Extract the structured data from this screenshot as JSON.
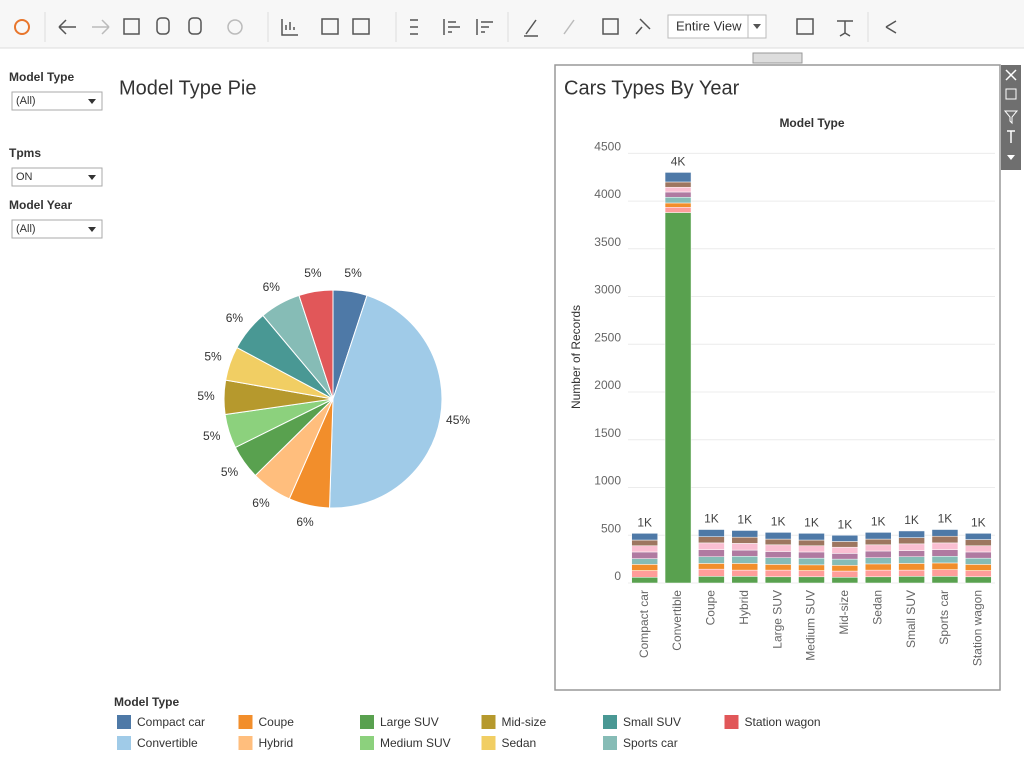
{
  "toolbar": {
    "view": "Entire View"
  },
  "filters": [
    {
      "label": "Model Type",
      "value": "(All)"
    },
    {
      "label": "Tpms",
      "value": "ON"
    },
    {
      "label": "Model Year",
      "value": "(All)"
    }
  ],
  "chart_data": [
    {
      "type": "pie",
      "title": "Model Type Pie",
      "legend_title": "Model Type",
      "categories": [
        "Compact car",
        "Convertible",
        "Coupe",
        "Hybrid",
        "Large SUV",
        "Medium SUV",
        "Mid-size",
        "Sedan",
        "Small SUV",
        "Sports car",
        "Station wagon"
      ],
      "values": [
        5,
        45,
        6,
        6,
        5,
        5,
        5,
        5,
        6,
        6,
        5
      ],
      "value_labels": [
        "5%",
        "45%",
        "6%",
        "6%",
        "5%",
        "5%",
        "5%",
        "5%",
        "6%",
        "6%",
        "5%"
      ],
      "colors": [
        "#4e79a7",
        "#a0cbe8",
        "#f28e2b",
        "#ffbe7d",
        "#59a14f",
        "#8cd17d",
        "#b6992d",
        "#f1ce63",
        "#499894",
        "#86bcb6",
        "#e15759"
      ]
    },
    {
      "type": "bar",
      "stacked": true,
      "title": "Cars Types By Year",
      "header": "Model Type",
      "y_label": "Number of Records",
      "categories": [
        "Compact car",
        "Convertible",
        "Coupe",
        "Hybrid",
        "Large SUV",
        "Medium SUV",
        "Mid-size",
        "Sedan",
        "Small SUV",
        "Sports car",
        "Station wagon"
      ],
      "series": [
        {
          "color": "#59a14f",
          "values": [
            60,
            3880,
            70,
            70,
            65,
            65,
            60,
            65,
            70,
            70,
            65
          ]
        },
        {
          "color": "#ff9d9a",
          "values": [
            70,
            55,
            75,
            65,
            70,
            65,
            65,
            70,
            65,
            70,
            65
          ]
        },
        {
          "color": "#f28e2b",
          "values": [
            65,
            45,
            60,
            70,
            60,
            60,
            60,
            65,
            70,
            70,
            65
          ]
        },
        {
          "color": "#86bcb6",
          "values": [
            60,
            60,
            70,
            75,
            70,
            70,
            65,
            65,
            70,
            70,
            65
          ]
        },
        {
          "color": "#b07aa1",
          "values": [
            70,
            55,
            75,
            65,
            65,
            65,
            60,
            70,
            65,
            70,
            65
          ]
        },
        {
          "color": "#fabfd2",
          "values": [
            65,
            50,
            70,
            70,
            70,
            65,
            65,
            65,
            70,
            70,
            65
          ]
        },
        {
          "color": "#9d7660",
          "values": [
            60,
            55,
            65,
            65,
            60,
            60,
            60,
            60,
            65,
            70,
            65
          ]
        },
        {
          "color": "#4e79a7",
          "values": [
            70,
            100,
            75,
            70,
            70,
            70,
            65,
            70,
            70,
            70,
            65
          ]
        }
      ],
      "totals": [
        520,
        4300,
        560,
        550,
        530,
        520,
        500,
        530,
        545,
        560,
        520
      ],
      "value_labels": [
        "1K",
        "4K",
        "1K",
        "1K",
        "1K",
        "1K",
        "1K",
        "1K",
        "1K",
        "1K",
        "1K"
      ],
      "ylim": [
        0,
        4650
      ],
      "yticks": [
        0,
        500,
        1000,
        1500,
        2000,
        2500,
        3000,
        3500,
        4000,
        4500
      ],
      "grid": true
    }
  ]
}
